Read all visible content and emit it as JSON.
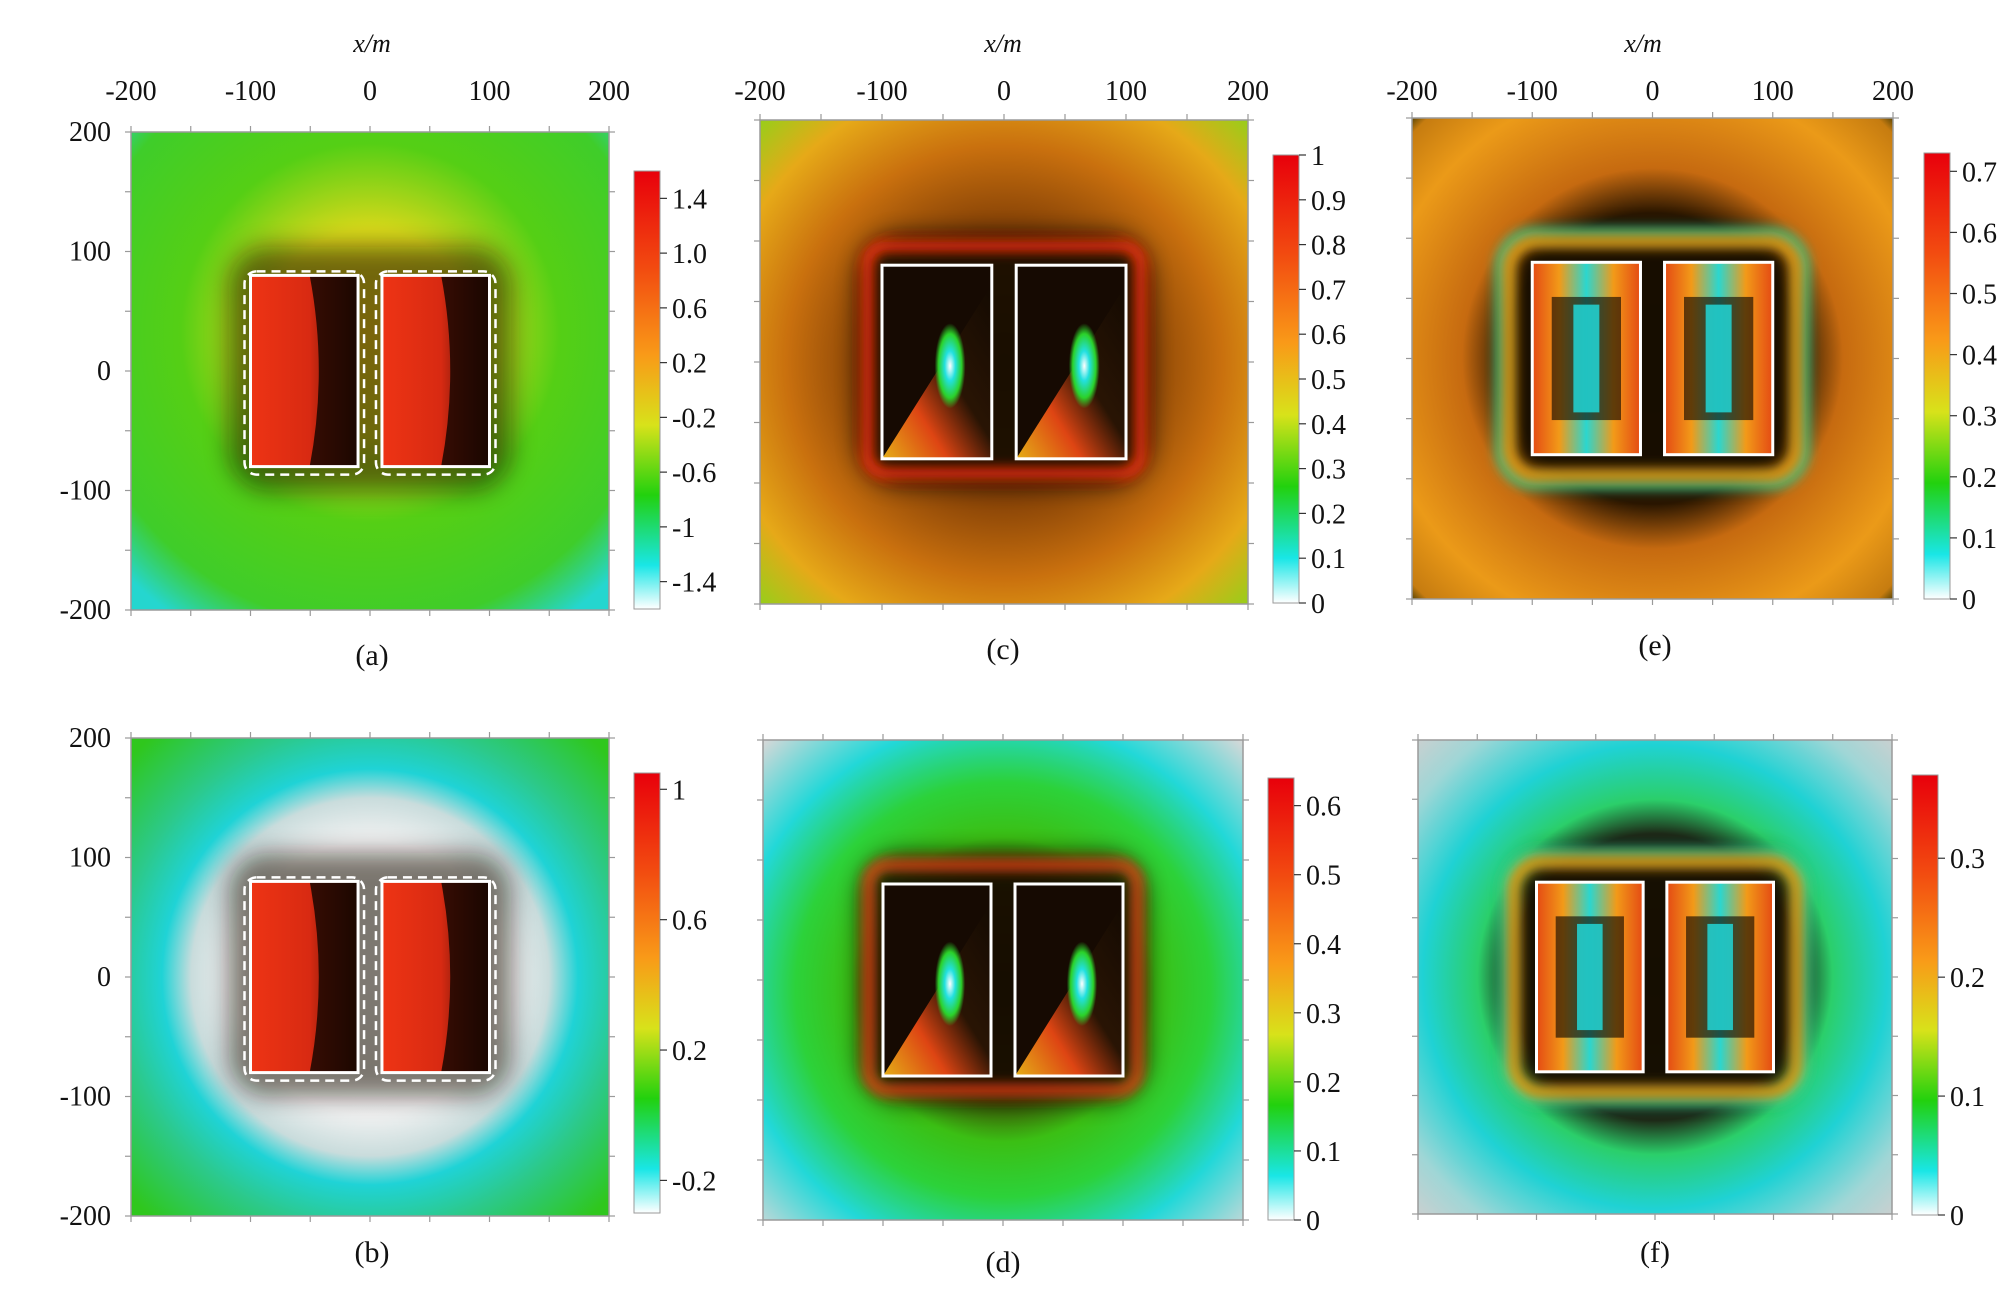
{
  "figure": {
    "x_axis_title": "x/m"
  },
  "colors": {
    "frame": "#9a9a9a",
    "box_outline": "#ffffff",
    "text": "#111111"
  },
  "chart_data": [
    {
      "type": "heatmap",
      "label": "(a)",
      "x_axis_title": "x/m",
      "xlim": [
        -200,
        200
      ],
      "ylim": [
        -200,
        200
      ],
      "x_ticks": [
        "-200",
        "-100",
        "0",
        "100",
        "200"
      ],
      "y_ticks": [
        "200",
        "100",
        "0",
        "-100",
        "-200"
      ],
      "colorbar_ticks": [
        "1.4",
        "1.0",
        "0.6",
        "0.2",
        "-0.2",
        "-0.6",
        "-1",
        "-1.4"
      ],
      "colorbar_range": [
        -1.6,
        1.6
      ],
      "colormap": "white-cyan-green-yellow-orange-red",
      "dashed_outline": true,
      "rect_outlines": [
        [
          -100,
          -80,
          -10,
          80
        ],
        [
          10,
          -80,
          100,
          80
        ]
      ],
      "interior": "red-dark",
      "background": "green"
    },
    {
      "type": "heatmap",
      "label": "(b)",
      "xlim": [
        -200,
        200
      ],
      "ylim": [
        -200,
        200
      ],
      "y_ticks": [
        "200",
        "100",
        "0",
        "-100",
        "-200"
      ],
      "colorbar_ticks": [
        "1",
        "0.6",
        "0.2",
        "-0.2"
      ],
      "colorbar_range": [
        -0.3,
        1.05
      ],
      "colormap": "white-cyan-green-yellow-orange-red",
      "dashed_outline": true,
      "rect_outlines": [
        [
          -100,
          -80,
          -10,
          80
        ],
        [
          10,
          -80,
          100,
          80
        ]
      ],
      "interior": "red-dark",
      "background": "green-white-halo"
    },
    {
      "type": "heatmap",
      "label": "(c)",
      "x_axis_title": "x/m",
      "xlim": [
        -200,
        200
      ],
      "ylim": [
        -200,
        200
      ],
      "x_ticks": [
        "-200",
        "-100",
        "0",
        "100",
        "200"
      ],
      "colorbar_ticks": [
        "1",
        "0.9",
        "0.8",
        "0.7",
        "0.6",
        "0.5",
        "0.4",
        "0.3",
        "0.2",
        "0.1",
        "0"
      ],
      "colorbar_range": [
        0,
        1
      ],
      "colormap": "white-cyan-green-yellow-orange-red",
      "dashed_outline": false,
      "rect_outlines": [
        [
          -100,
          -80,
          -10,
          80
        ],
        [
          10,
          -80,
          100,
          80
        ]
      ],
      "interior": "dark-wedge",
      "background": "orange-dark"
    },
    {
      "type": "heatmap",
      "label": "(d)",
      "xlim": [
        -200,
        200
      ],
      "ylim": [
        -200,
        200
      ],
      "colorbar_ticks": [
        "0.6",
        "0.5",
        "0.4",
        "0.3",
        "0.2",
        "0.1",
        "0"
      ],
      "colorbar_range": [
        0,
        0.64
      ],
      "colormap": "white-cyan-green-yellow-orange-red",
      "dashed_outline": false,
      "rect_outlines": [
        [
          -100,
          -80,
          -10,
          80
        ],
        [
          10,
          -80,
          100,
          80
        ]
      ],
      "interior": "dark-wedge",
      "background": "cyan-green-halo"
    },
    {
      "type": "heatmap",
      "label": "(e)",
      "x_axis_title": "x/m",
      "xlim": [
        -200,
        200
      ],
      "ylim": [
        -200,
        200
      ],
      "x_ticks": [
        "-200",
        "-100",
        "0",
        "100",
        "200"
      ],
      "colorbar_ticks": [
        "0.7",
        "0.6",
        "0.5",
        "0.4",
        "0.3",
        "0.2",
        "0.1",
        "0"
      ],
      "colorbar_range": [
        0,
        0.73
      ],
      "colormap": "white-cyan-green-yellow-orange-red",
      "dashed_outline": false,
      "rect_outlines": [
        [
          -100,
          -80,
          -10,
          80
        ],
        [
          10,
          -80,
          100,
          80
        ]
      ],
      "interior": "dark-frame",
      "background": "orange-rings"
    },
    {
      "type": "heatmap",
      "label": "(f)",
      "xlim": [
        -200,
        200
      ],
      "ylim": [
        -200,
        200
      ],
      "colorbar_ticks": [
        "0.3",
        "0.2",
        "0.1",
        "0"
      ],
      "colorbar_range": [
        0,
        0.37
      ],
      "colormap": "white-cyan-green-yellow-orange-red",
      "dashed_outline": false,
      "rect_outlines": [
        [
          -100,
          -80,
          -10,
          80
        ],
        [
          10,
          -80,
          100,
          80
        ]
      ],
      "interior": "dark-frame",
      "background": "cyan-grey-halo"
    }
  ]
}
